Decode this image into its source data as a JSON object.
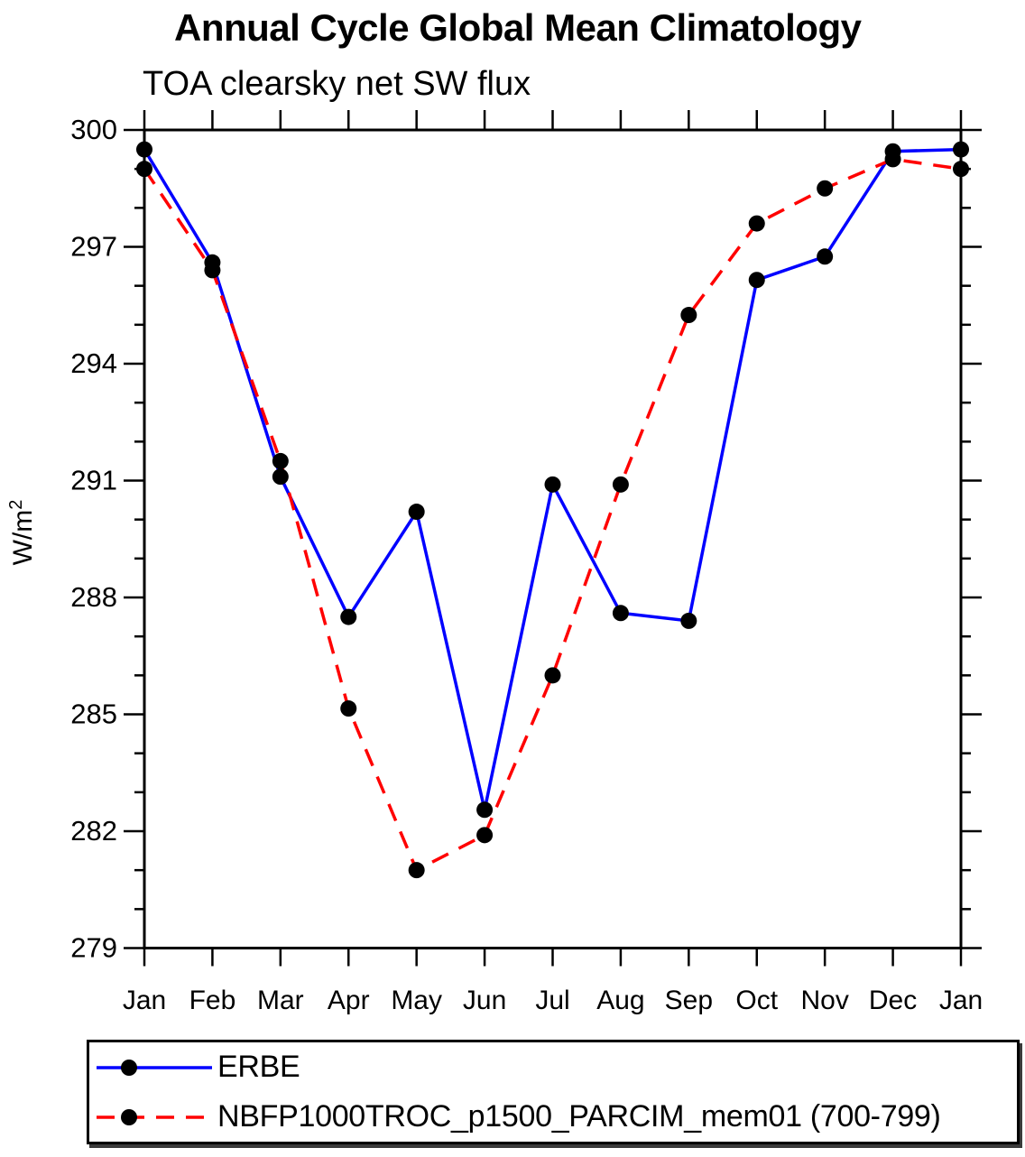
{
  "title": "Annual Cycle Global Mean Climatology",
  "subtitle": "TOA clearsky net SW flux",
  "ylabel": {
    "text": "W/m",
    "sup": "2"
  },
  "chart_data": {
    "type": "line",
    "x_categories": [
      "Jan",
      "Feb",
      "Mar",
      "Apr",
      "May",
      "Jun",
      "Jul",
      "Aug",
      "Sep",
      "Oct",
      "Nov",
      "Dec",
      "Jan"
    ],
    "xlabel": "",
    "ylabel": "W/m2",
    "ylim": [
      279,
      300
    ],
    "yticks_major": [
      279,
      282,
      285,
      288,
      291,
      294,
      297,
      300
    ],
    "ytick_minor_step": 1,
    "grid": false,
    "legend_position": "bottom",
    "marker_color": "#000000",
    "series": [
      {
        "name": "ERBE",
        "color": "#0000ff",
        "style": "solid",
        "values": [
          299.5,
          296.6,
          291.1,
          287.5,
          290.2,
          282.55,
          290.9,
          287.6,
          287.4,
          296.15,
          296.75,
          299.45,
          299.5
        ]
      },
      {
        "name": "NBFP1000TROC_p1500_PARCIM_mem01 (700-799)",
        "color": "#ff0000",
        "style": "dashed",
        "values": [
          299.0,
          296.4,
          291.5,
          285.15,
          281.0,
          281.9,
          286.0,
          290.9,
          295.25,
          297.6,
          298.5,
          299.25,
          299.0
        ]
      }
    ]
  }
}
